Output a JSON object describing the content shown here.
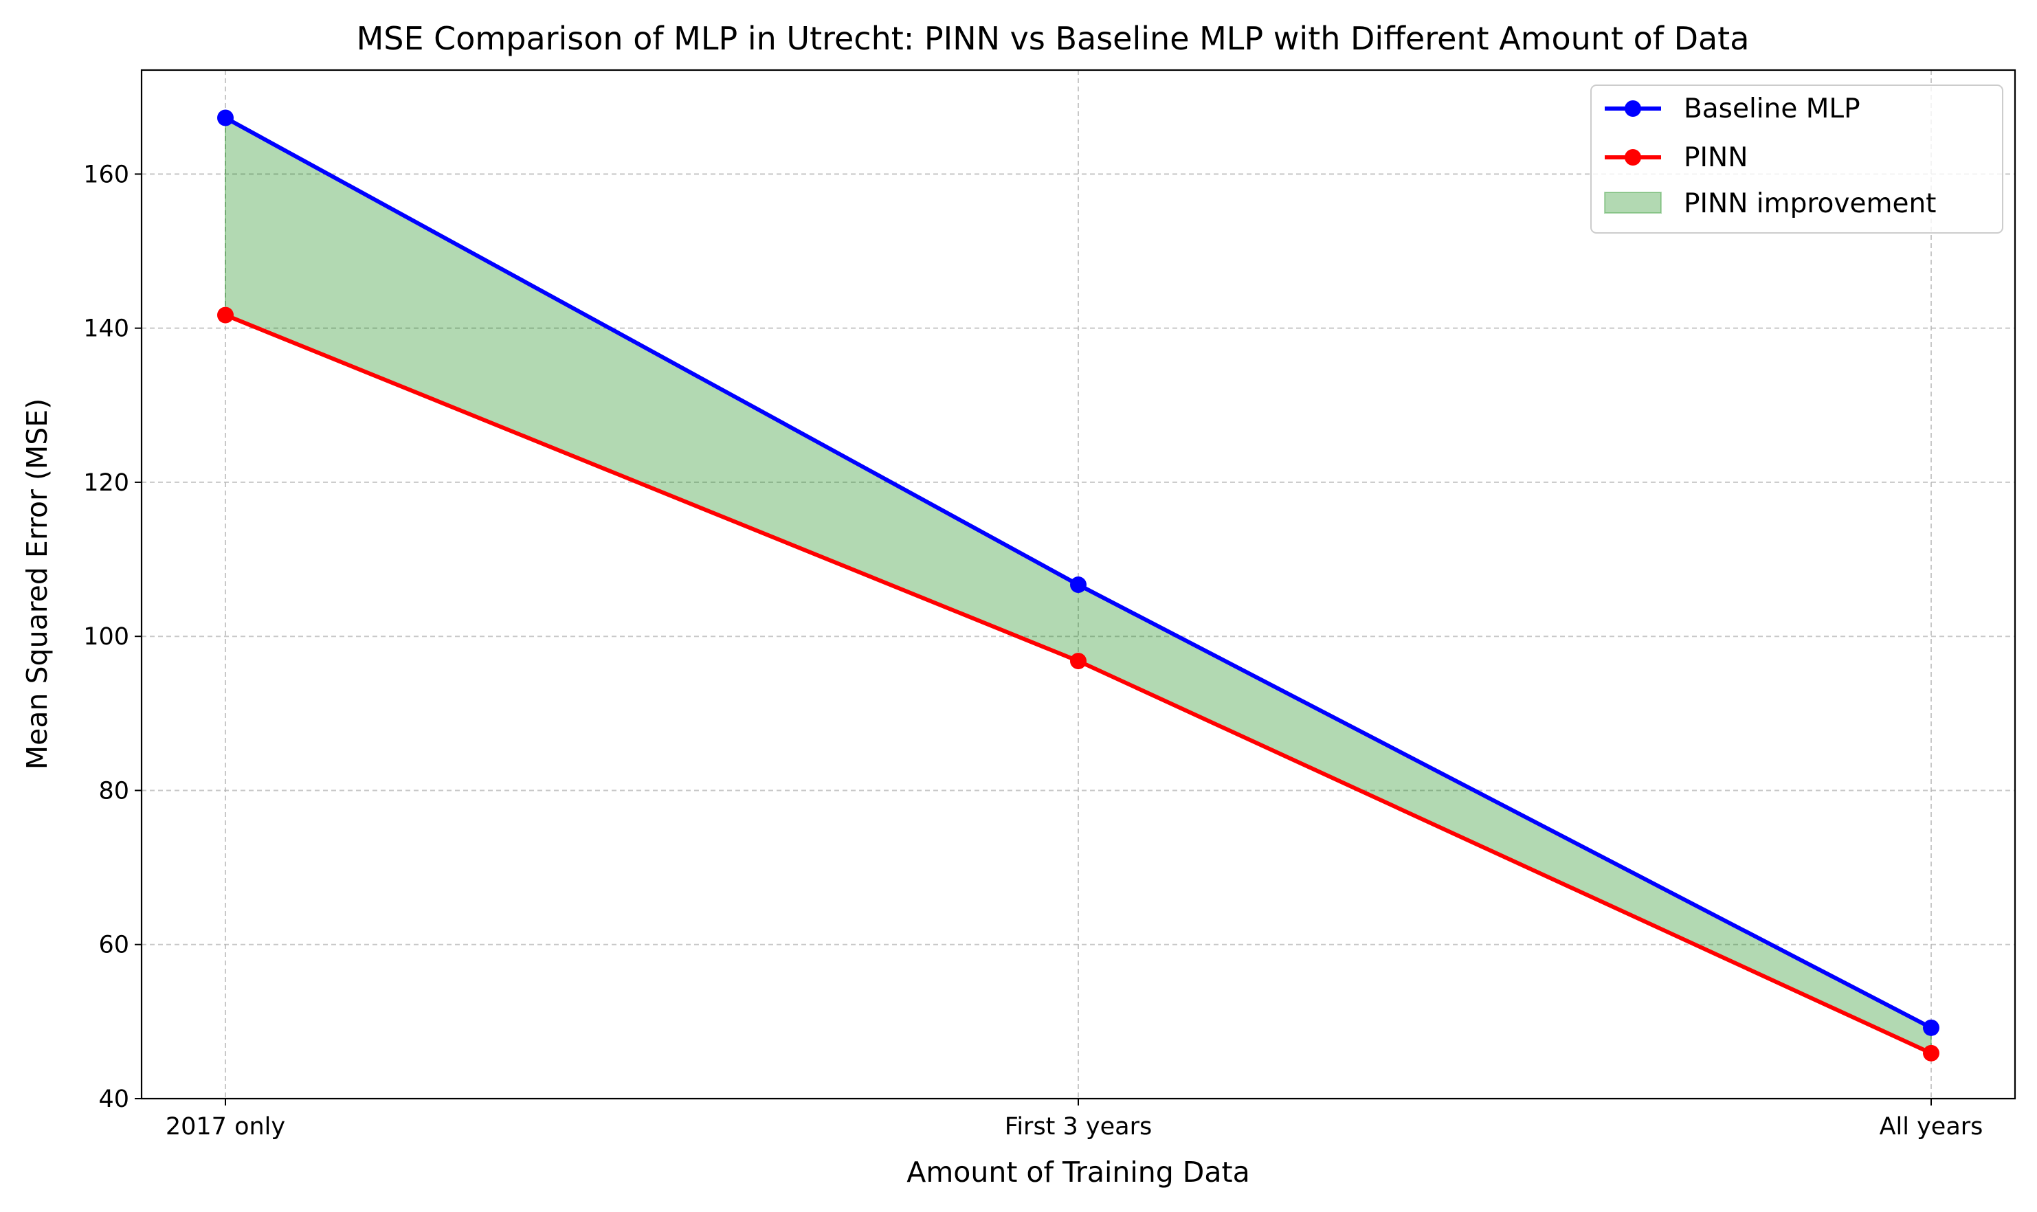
{
  "chart_data": {
    "type": "line",
    "title": "MSE Comparison of MLP in Utrecht: PINN vs Baseline MLP with Different Amount of Data",
    "xlabel": "Amount of Training Data",
    "ylabel": "Mean Squared Error (MSE)",
    "categories": [
      "2017 only",
      "First 3 years",
      "All years"
    ],
    "ylim": [
      40,
      173.5
    ],
    "yticks": [
      40,
      60,
      80,
      100,
      120,
      140,
      160
    ],
    "grid": true,
    "legend_position": "top-right",
    "series": [
      {
        "name": "Baseline MLP",
        "values": [
          167.3,
          106.7,
          49.2
        ],
        "color": "#0000ff",
        "marker": "circle"
      },
      {
        "name": "PINN",
        "values": [
          141.7,
          96.8,
          45.9
        ],
        "color": "#ff0000",
        "marker": "circle"
      }
    ],
    "fill_between": {
      "name": "PINN improvement",
      "upper": "Baseline MLP",
      "lower": "PINN",
      "color": "#008000",
      "alpha": 0.3
    }
  }
}
